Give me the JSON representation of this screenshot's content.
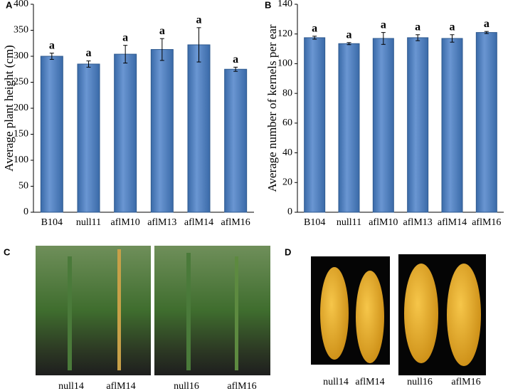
{
  "chart_data": [
    {
      "type": "bar",
      "panel": "A",
      "ylabel": "Average plant height (cm)",
      "categories": [
        "B104",
        "null11",
        "aflM10",
        "aflM13",
        "aflM14",
        "aflM16"
      ],
      "values": [
        300,
        285,
        304,
        313,
        322,
        275
      ],
      "errors": [
        6,
        6,
        17,
        21,
        33,
        4
      ],
      "letters": [
        "a",
        "a",
        "a",
        "a",
        "a",
        "a"
      ],
      "color": "#4f81bd",
      "ylim": [
        0,
        400
      ],
      "yticks": [
        0,
        50,
        100,
        150,
        200,
        250,
        300,
        350,
        400
      ]
    },
    {
      "type": "bar",
      "panel": "B",
      "ylabel": "Average number of kernels per ear",
      "categories": [
        "B104",
        "null11",
        "aflM10",
        "aflM13",
        "aflM14",
        "aflM16"
      ],
      "values": [
        117.5,
        113.5,
        117,
        117.5,
        117,
        121
      ],
      "errors": [
        1,
        0.7,
        4,
        2,
        2.5,
        0.7
      ],
      "letters": [
        "a",
        "a",
        "a",
        "a",
        "a",
        "a"
      ],
      "color": "#4f81bd",
      "ylim": [
        0,
        140
      ],
      "yticks": [
        0,
        20,
        40,
        60,
        80,
        100,
        120,
        140
      ]
    }
  ],
  "photos": {
    "C": {
      "panel": "C",
      "labels": [
        "null14",
        "aflM14",
        "null16",
        "aflM16"
      ]
    },
    "D": {
      "panel": "D",
      "labels": [
        "null14",
        "aflM14",
        "null16",
        "aflM16"
      ]
    }
  }
}
